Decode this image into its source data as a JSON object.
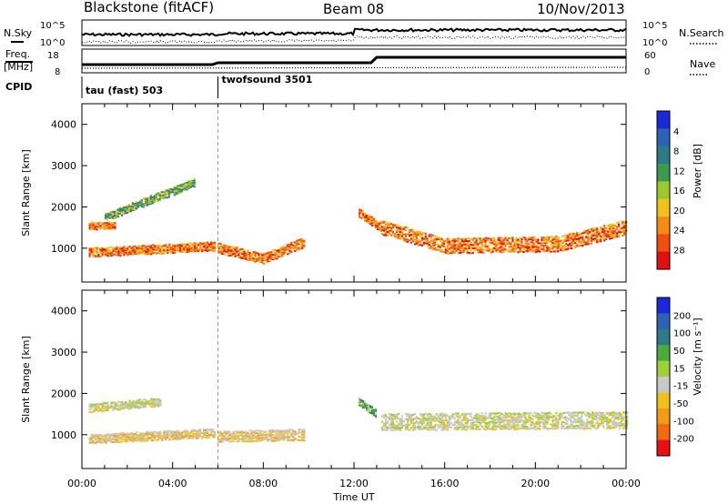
{
  "header": {
    "radar": "Blackstone (fitACF)",
    "beam": "Beam 08",
    "date": "10/Nov/2013"
  },
  "summary": {
    "nsky_label": "N.Sky",
    "nsearch_label": "N.Search",
    "noise_ticks": [
      "10^5",
      "10^0"
    ],
    "freq_label_1": "Freq.",
    "freq_label_2": "[MHz]",
    "freq_ticks": [
      "18",
      "8"
    ],
    "nave_label": "Nave",
    "nave_ticks": [
      "60",
      "0"
    ],
    "cpid_label": "CPID",
    "cpid": [
      {
        "name": "tau (fast) 503",
        "start_hour": 0
      },
      {
        "name": "twofsound 3501",
        "start_hour": 6
      }
    ]
  },
  "chart_data": [
    {
      "type": "heatmap",
      "title": "",
      "xlabel": "",
      "ylabel": "Slant Range [km]",
      "xlim": [
        0,
        24
      ],
      "ylim": [
        180,
        4500
      ],
      "yticks": [
        1000,
        2000,
        3000,
        4000
      ],
      "colorbar": {
        "label": "Power [dB]",
        "range": [
          0,
          32
        ],
        "ticks": [
          "4",
          "8",
          "12",
          "16",
          "20",
          "24",
          "28"
        ],
        "colors": [
          "#1a2ad8",
          "#2e62b6",
          "#2f7a88",
          "#3a9a50",
          "#9bc82c",
          "#f0c01c",
          "#f58a14",
          "#f04e10",
          "#e01010"
        ]
      },
      "echo_bands": [
        {
          "from_hour": 0.3,
          "to_hour": 5.9,
          "range_start": 900,
          "range_end": 1050,
          "thickness": 220,
          "value": "high"
        },
        {
          "from_hour": 0.3,
          "to_hour": 1.5,
          "range_start": 1550,
          "range_end": 1550,
          "thickness": 180,
          "value": "high"
        },
        {
          "from_hour": 1.0,
          "to_hour": 5.0,
          "range_start": 1750,
          "range_end": 2600,
          "thickness": 200,
          "value": "medium"
        },
        {
          "from_hour": 6.0,
          "to_hour": 8.0,
          "range_start": 1000,
          "range_end": 750,
          "thickness": 250,
          "value": "high"
        },
        {
          "from_hour": 8.0,
          "to_hour": 9.8,
          "range_start": 750,
          "range_end": 1150,
          "thickness": 250,
          "value": "high"
        },
        {
          "from_hour": 12.2,
          "to_hour": 13.2,
          "range_start": 1850,
          "range_end": 1500,
          "thickness": 220,
          "value": "high"
        },
        {
          "from_hour": 13.2,
          "to_hour": 16.0,
          "range_start": 1500,
          "range_end": 1050,
          "thickness": 360,
          "value": "high"
        },
        {
          "from_hour": 16.0,
          "to_hour": 21.0,
          "range_start": 1050,
          "range_end": 1100,
          "thickness": 380,
          "value": "high"
        },
        {
          "from_hour": 21.0,
          "to_hour": 24.0,
          "range_start": 1100,
          "range_end": 1500,
          "thickness": 380,
          "value": "high"
        }
      ]
    },
    {
      "type": "heatmap",
      "title": "",
      "xlabel": "Time UT",
      "ylabel": "Slant Range [km]",
      "xlim": [
        0,
        24
      ],
      "ylim": [
        180,
        4500
      ],
      "xticks": [
        "00:00",
        "04:00",
        "08:00",
        "12:00",
        "16:00",
        "20:00",
        "00:00"
      ],
      "yticks": [
        1000,
        2000,
        3000,
        4000
      ],
      "colorbar": {
        "label": "Velocity [m s⁻¹]",
        "range": [
          -250,
          250
        ],
        "ticks": [
          "200",
          "100",
          "50",
          "15",
          "-15",
          "-50",
          "-100",
          "-200"
        ],
        "colors": [
          "#1a2ad8",
          "#2e62b6",
          "#2f7a88",
          "#4aaa3c",
          "#9ed03a",
          "#c8c8c8",
          "#f0c01c",
          "#f39a18",
          "#f06a10",
          "#e81010"
        ]
      },
      "echo_bands": [
        {
          "from_hour": 0.3,
          "to_hour": 5.9,
          "range_start": 900,
          "range_end": 1050,
          "thickness": 220,
          "value": "-50"
        },
        {
          "from_hour": 0.3,
          "to_hour": 3.5,
          "range_start": 1650,
          "range_end": 1800,
          "thickness": 200,
          "value": "-15"
        },
        {
          "from_hour": 6.0,
          "to_hour": 9.8,
          "range_start": 950,
          "range_end": 1000,
          "thickness": 280,
          "value": "-50"
        },
        {
          "from_hour": 12.2,
          "to_hour": 13.0,
          "range_start": 1800,
          "range_end": 1500,
          "thickness": 200,
          "value": "50"
        },
        {
          "from_hour": 13.2,
          "to_hour": 24.0,
          "range_start": 1300,
          "range_end": 1350,
          "thickness": 420,
          "value": "-15"
        }
      ]
    }
  ]
}
